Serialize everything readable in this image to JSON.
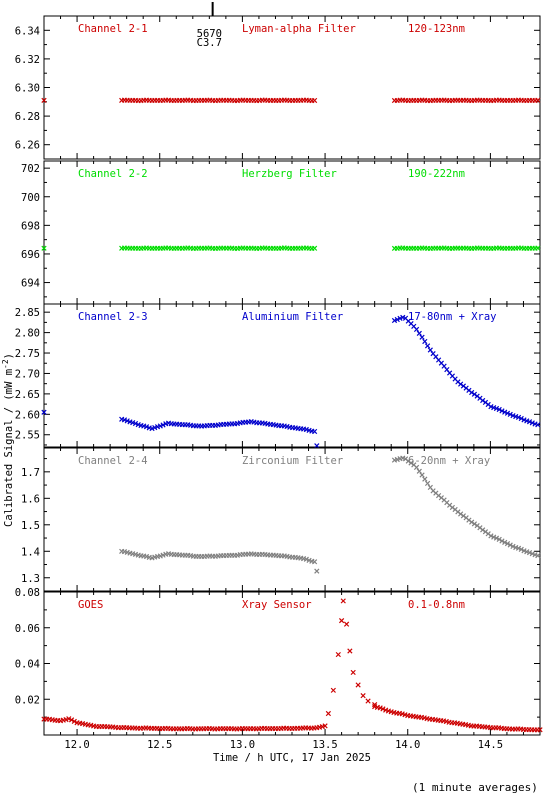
{
  "ylabel": "Calibrated Signal / (mW m",
  "ylabel_exp": "-2",
  "ylabel_end": ")",
  "footer_note": "(1 minute averages)",
  "chart_data": {
    "type": "scatter",
    "xlabel": "Time / h UTC, 17 Jan 2025",
    "xlim": [
      11.8,
      14.8
    ],
    "xticks": [
      12.0,
      12.5,
      13.0,
      13.5,
      14.0,
      14.5
    ],
    "xtick_labels": [
      "12.0",
      "12.5",
      "13.0",
      "13.5",
      "14.0",
      "14.5"
    ],
    "flare_marker": {
      "x": 12.82,
      "labels": [
        "5670",
        "C3.7"
      ]
    },
    "panels": [
      {
        "color": "#cc0000",
        "labels": [
          "Channel 2-1",
          "Lyman-alpha Filter",
          "120-123nm"
        ],
        "ylim": [
          6.25,
          6.35
        ],
        "yticks": [
          6.26,
          6.28,
          6.3,
          6.32,
          6.34
        ],
        "ytick_labels": [
          "6.26",
          "6.28",
          "6.30",
          "6.32",
          "6.34"
        ],
        "series": [
          {
            "x": [
              11.8
            ],
            "y": [
              6.291
            ]
          },
          {
            "range": [
              12.27,
              13.44
            ],
            "y": [
              [
                12.27,
                6.291
              ],
              [
                13.44,
                6.291
              ]
            ]
          },
          {
            "range": [
              13.92,
              14.8
            ],
            "y": [
              [
                13.92,
                6.291
              ],
              [
                14.8,
                6.291
              ]
            ]
          }
        ]
      },
      {
        "color": "#00dd00",
        "labels": [
          "Channel 2-2",
          "Herzberg Filter",
          "190-222nm"
        ],
        "ylim": [
          692.5,
          702.5
        ],
        "yticks": [
          694,
          696,
          698,
          700,
          702
        ],
        "ytick_labels": [
          "694",
          "696",
          "698",
          "700",
          "702"
        ],
        "series": [
          {
            "x": [
              11.8
            ],
            "y": [
              696.4
            ]
          },
          {
            "range": [
              12.27,
              13.44
            ],
            "y": [
              [
                12.27,
                696.4
              ],
              [
                13.44,
                696.4
              ]
            ]
          },
          {
            "range": [
              13.92,
              14.8
            ],
            "y": [
              [
                13.92,
                696.4
              ],
              [
                14.8,
                696.4
              ]
            ]
          }
        ]
      },
      {
        "color": "#0000cc",
        "labels": [
          "Channel 2-3",
          "Aluminium Filter",
          "17-80nm + Xray"
        ],
        "ylim": [
          2.52,
          2.87
        ],
        "yticks": [
          2.55,
          2.6,
          2.65,
          2.7,
          2.75,
          2.8,
          2.85
        ],
        "ytick_labels": [
          "2.55",
          "2.60",
          "2.65",
          "2.70",
          "2.75",
          "2.80",
          "2.85"
        ],
        "series": [
          {
            "x": [
              11.8
            ],
            "y": [
              2.605
            ]
          },
          {
            "range": [
              12.27,
              13.44
            ],
            "y": [
              [
                12.27,
                2.588
              ],
              [
                12.45,
                2.565
              ],
              [
                12.55,
                2.578
              ],
              [
                12.75,
                2.571
              ],
              [
                12.95,
                2.577
              ],
              [
                13.05,
                2.582
              ],
              [
                13.2,
                2.574
              ],
              [
                13.35,
                2.565
              ],
              [
                13.44,
                2.558
              ]
            ]
          },
          {
            "x": [
              13.45
            ],
            "y": [
              2.523
            ]
          },
          {
            "range": [
              13.92,
              14.8
            ],
            "y": [
              [
                13.92,
                2.83
              ],
              [
                13.98,
                2.838
              ],
              [
                14.05,
                2.81
              ],
              [
                14.15,
                2.75
              ],
              [
                14.3,
                2.68
              ],
              [
                14.5,
                2.62
              ],
              [
                14.65,
                2.595
              ],
              [
                14.8,
                2.572
              ]
            ]
          }
        ]
      },
      {
        "color": "#808080",
        "labels": [
          "Channel 2-4",
          "Zirconium Filter",
          "6-20nm + Xray"
        ],
        "ylim": [
          1.25,
          1.79
        ],
        "yticks": [
          1.3,
          1.4,
          1.5,
          1.6,
          1.7
        ],
        "ytick_labels": [
          "1.3",
          "1.4",
          "1.5",
          "1.6",
          "1.7"
        ],
        "series": [
          {
            "range": [
              12.27,
              13.44
            ],
            "y": [
              [
                12.27,
                1.4
              ],
              [
                12.45,
                1.375
              ],
              [
                12.55,
                1.39
              ],
              [
                12.75,
                1.38
              ],
              [
                12.95,
                1.385
              ],
              [
                13.05,
                1.39
              ],
              [
                13.2,
                1.385
              ],
              [
                13.35,
                1.375
              ],
              [
                13.44,
                1.36
              ]
            ]
          },
          {
            "x": [
              13.45
            ],
            "y": [
              1.325
            ]
          },
          {
            "range": [
              13.92,
              14.8
            ],
            "y": [
              [
                13.92,
                1.745
              ],
              [
                13.98,
                1.752
              ],
              [
                14.05,
                1.72
              ],
              [
                14.15,
                1.63
              ],
              [
                14.3,
                1.55
              ],
              [
                14.5,
                1.46
              ],
              [
                14.65,
                1.415
              ],
              [
                14.8,
                1.38
              ]
            ]
          }
        ]
      },
      {
        "color": "#cc0000",
        "labels": [
          "GOES",
          "Xray Sensor",
          "0.1-0.8nm"
        ],
        "ylim": [
          0.0,
          0.08
        ],
        "yticks": [
          0.02,
          0.04,
          0.06,
          0.08
        ],
        "ytick_labels": [
          "0.02",
          "0.04",
          "0.06",
          "0.08"
        ],
        "series": [
          {
            "range": [
              11.8,
              13.5
            ],
            "y": [
              [
                11.8,
                0.009
              ],
              [
                11.9,
                0.008
              ],
              [
                11.95,
                0.009
              ],
              [
                12.0,
                0.007
              ],
              [
                12.1,
                0.005
              ],
              [
                12.3,
                0.004
              ],
              [
                12.6,
                0.0035
              ],
              [
                13.0,
                0.0035
              ],
              [
                13.3,
                0.0037
              ],
              [
                13.45,
                0.004
              ],
              [
                13.5,
                0.005
              ]
            ]
          },
          {
            "x": [
              13.52,
              13.55,
              13.58,
              13.6,
              13.61,
              13.63,
              13.65,
              13.67,
              13.7,
              13.73,
              13.76,
              13.8
            ],
            "y": [
              0.012,
              0.025,
              0.045,
              0.064,
              0.075,
              0.062,
              0.047,
              0.035,
              0.028,
              0.022,
              0.019,
              0.017
            ]
          },
          {
            "range": [
              13.8,
              14.8
            ],
            "y": [
              [
                13.8,
                0.016
              ],
              [
                13.9,
                0.013
              ],
              [
                14.0,
                0.011
              ],
              [
                14.2,
                0.008
              ],
              [
                14.4,
                0.005
              ],
              [
                14.6,
                0.0035
              ],
              [
                14.8,
                0.0028
              ]
            ]
          }
        ]
      }
    ]
  }
}
